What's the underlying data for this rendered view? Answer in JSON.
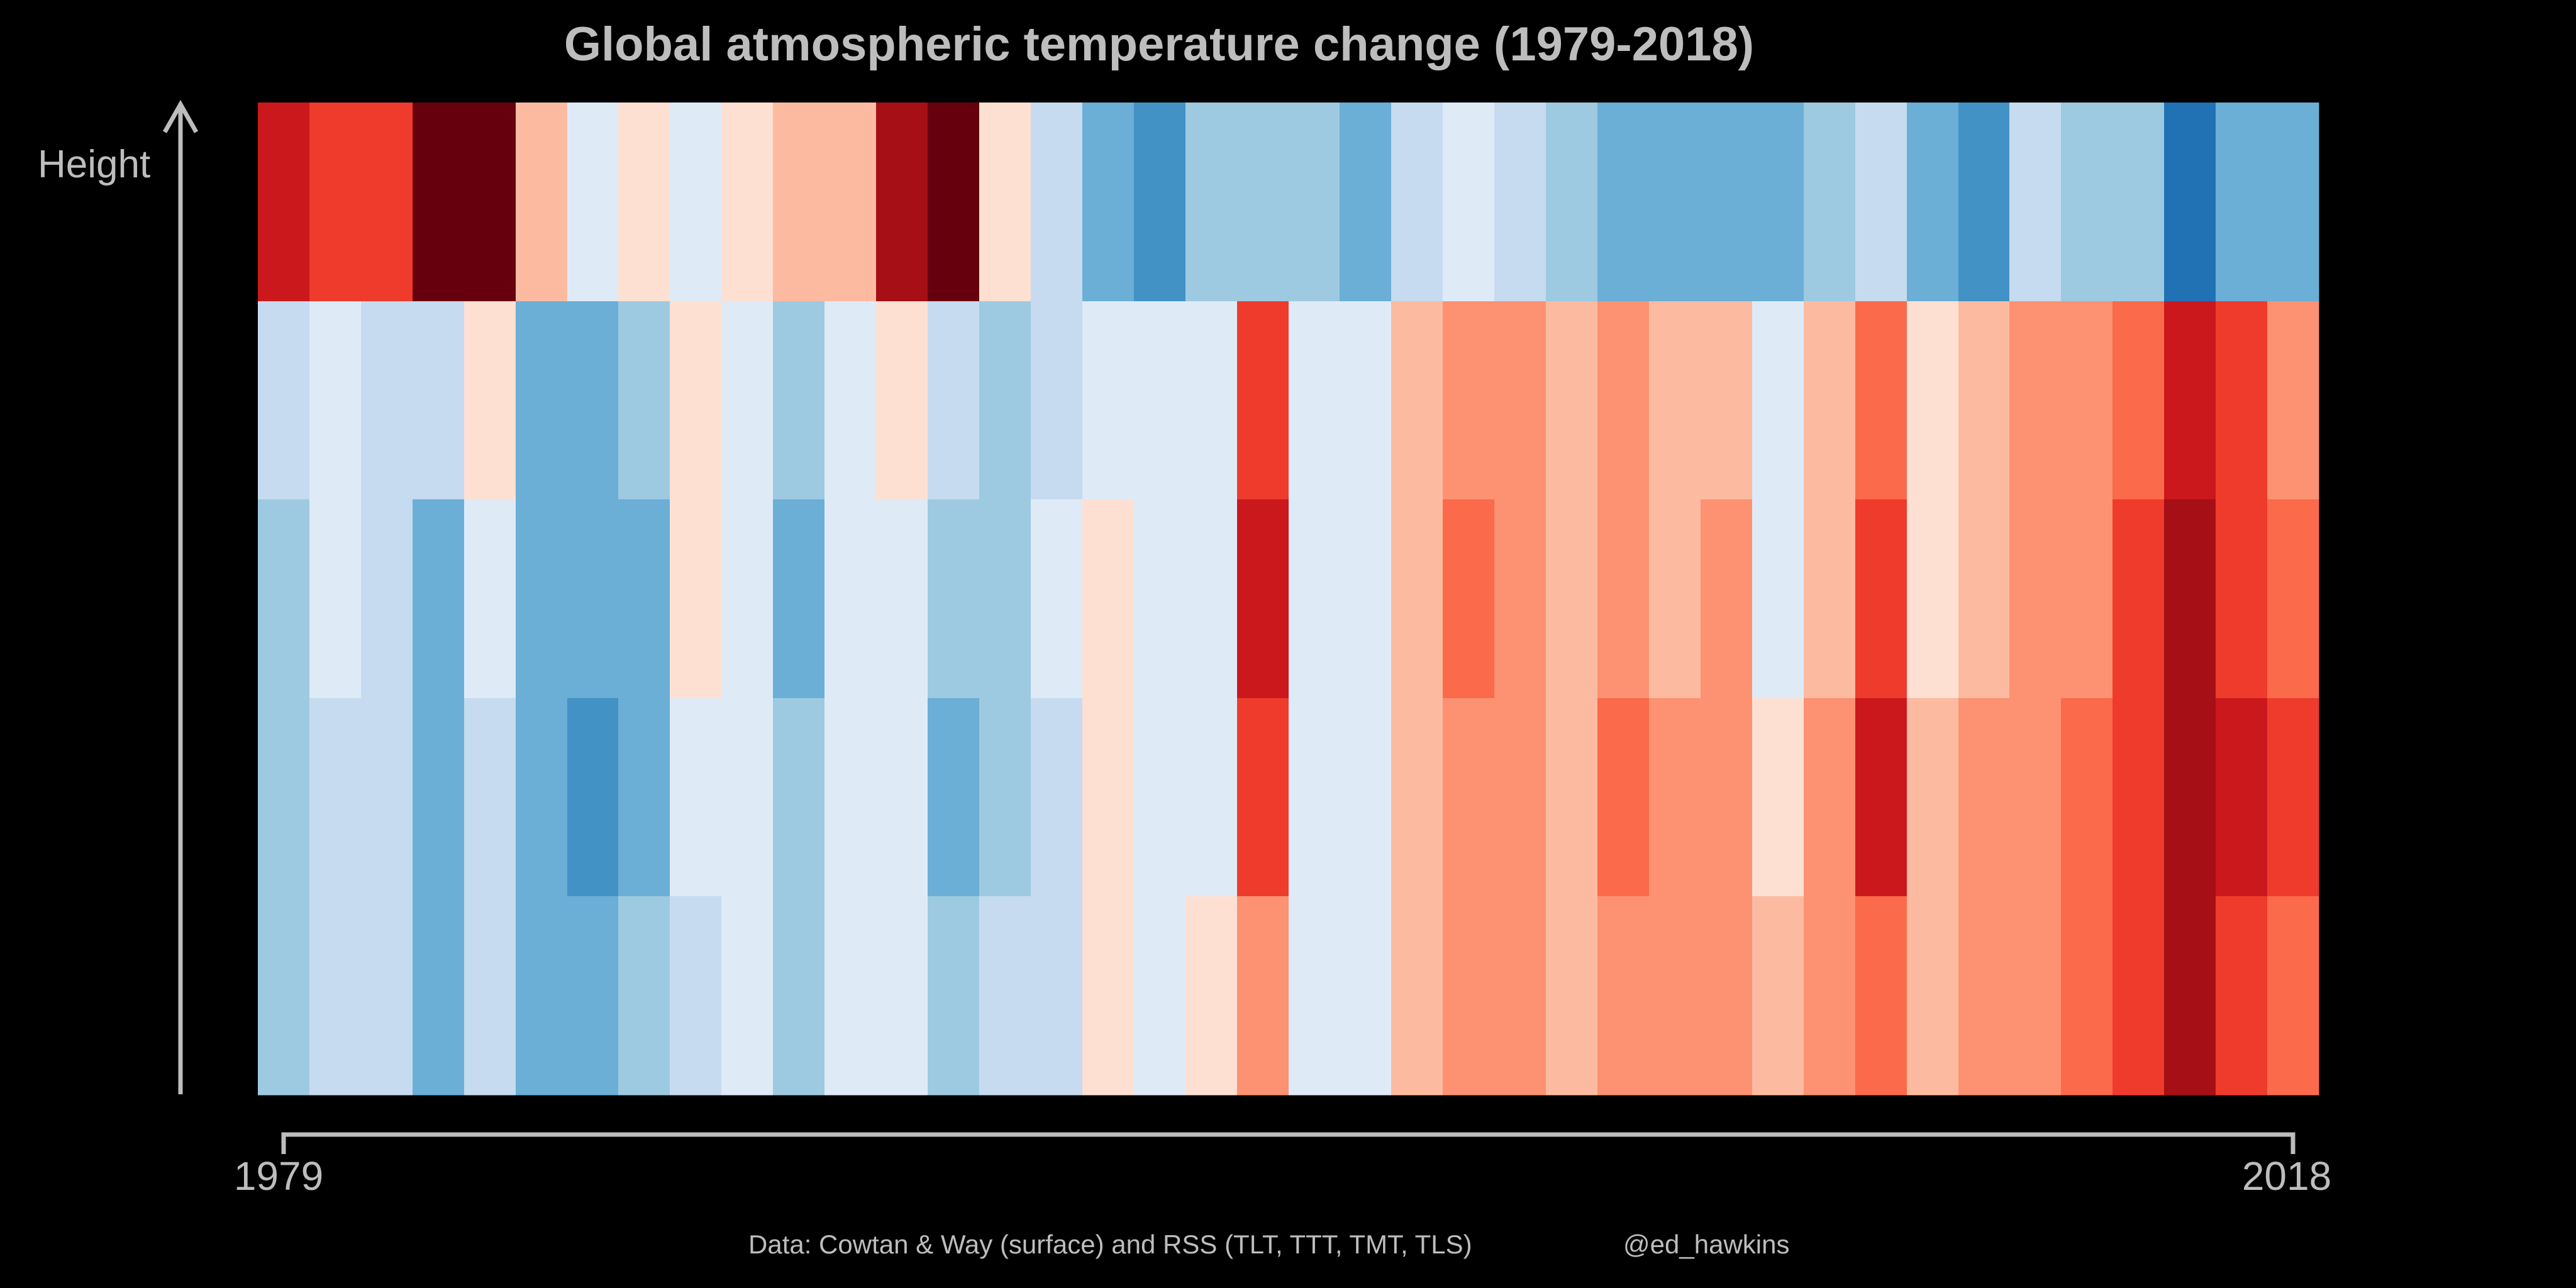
{
  "chart_data": {
    "type": "heatmap",
    "title": "Global atmospheric temperature change (1979-2018)",
    "ylabel": "Height",
    "xlabel": "",
    "x_start_label": "1979",
    "x_end_label": "2018",
    "x_range": [
      1979,
      2018
    ],
    "years": [
      1979,
      1980,
      1981,
      1982,
      1983,
      1984,
      1985,
      1986,
      1987,
      1988,
      1989,
      1990,
      1991,
      1992,
      1993,
      1994,
      1995,
      1996,
      1997,
      1998,
      1999,
      2000,
      2001,
      2002,
      2003,
      2004,
      2005,
      2006,
      2007,
      2008,
      2009,
      2010,
      2011,
      2012,
      2013,
      2014,
      2015,
      2016,
      2017,
      2018
    ],
    "rows_order": "top-to-bottom (highest layer first)",
    "color_scale": {
      "description": "Anomaly level class: negative = cooler (blues), positive = warmer (reds)",
      "levels": {
        "-6": "#2171b5",
        "-5": "#4292c6",
        "-4": "#6baed6",
        "-3": "#9ecae1",
        "-2": "#c6dbef",
        "-1": "#deebf7",
        "1": "#fee0d2",
        "2": "#fcbba1",
        "3": "#fc9272",
        "4": "#fb6a4a",
        "5": "#ef3b2c",
        "6": "#cb181d",
        "7": "#a50f15",
        "8": "#67000d"
      }
    },
    "rows": [
      [
        6,
        5,
        5,
        8,
        8,
        2,
        -1,
        1,
        -1,
        1,
        2,
        2,
        7,
        8,
        1,
        -2,
        -4,
        -5,
        -3,
        -3,
        -3,
        -4,
        -2,
        -1,
        -2,
        -3,
        -4,
        -4,
        -4,
        -4,
        -3,
        -2,
        -4,
        -5,
        -2,
        -3,
        -3,
        -6,
        -4,
        -4
      ],
      [
        -2,
        -1,
        -2,
        -2,
        1,
        -4,
        -4,
        -3,
        1,
        -1,
        -3,
        -1,
        1,
        -2,
        -3,
        -2,
        -1,
        -1,
        -1,
        5,
        -1,
        -1,
        2,
        3,
        3,
        2,
        3,
        2,
        2,
        -1,
        2,
        4,
        1,
        2,
        3,
        3,
        4,
        6,
        5,
        3
      ],
      [
        -3,
        -1,
        -2,
        -4,
        -1,
        -4,
        -4,
        -4,
        1,
        -1,
        -4,
        -1,
        -1,
        -3,
        -3,
        -1,
        1,
        -1,
        -1,
        6,
        -1,
        -1,
        2,
        4,
        3,
        2,
        3,
        2,
        3,
        -1,
        2,
        5,
        1,
        2,
        3,
        3,
        5,
        7,
        5,
        4
      ],
      [
        -3,
        -2,
        -2,
        -4,
        -2,
        -4,
        -5,
        -4,
        -1,
        -1,
        -3,
        -1,
        -1,
        -4,
        -3,
        -2,
        1,
        -1,
        -1,
        5,
        -1,
        -1,
        2,
        3,
        3,
        2,
        4,
        3,
        3,
        1,
        3,
        6,
        2,
        3,
        3,
        4,
        5,
        7,
        6,
        5
      ],
      [
        -3,
        -2,
        -2,
        -4,
        -2,
        -4,
        -4,
        -3,
        -2,
        -1,
        -3,
        -1,
        -1,
        -3,
        -2,
        -2,
        1,
        -1,
        1,
        3,
        -1,
        -1,
        2,
        3,
        3,
        2,
        3,
        3,
        3,
        2,
        3,
        4,
        2,
        3,
        3,
        4,
        5,
        7,
        5,
        4
      ]
    ],
    "legend": "none",
    "grid": false
  },
  "footer": {
    "source": "Data: Cowtan & Way (surface) and RSS (TLT, TTT, TMT, TLS)",
    "credit": "@ed_hawkins"
  },
  "colors": {
    "background": "#000000",
    "text": "#bdbdbd",
    "axis": "#bdbdbd"
  }
}
